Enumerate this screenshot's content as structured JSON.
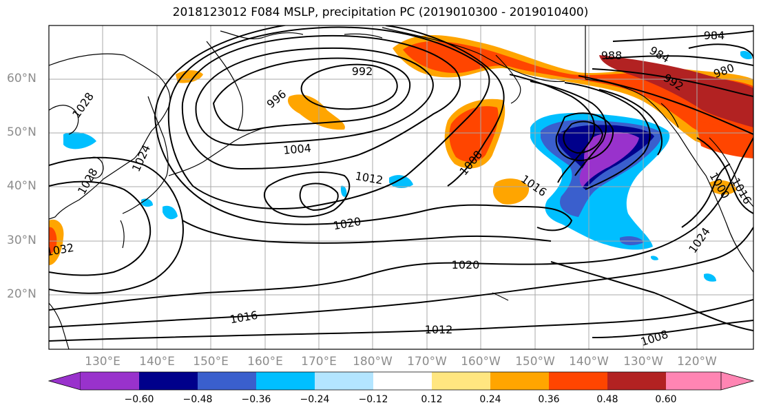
{
  "title": "2018123012 F084 MSLP, precipitation PC (2019010300 - 2019010400)",
  "lat_labels": [
    "60°N",
    "50°N",
    "40°N",
    "30°N",
    "20°N"
  ],
  "lon_labels": [
    "130°E",
    "140°E",
    "150°E",
    "160°E",
    "170°E",
    "180°W",
    "170°W",
    "160°W",
    "150°W",
    "140°W",
    "130°W",
    "120°W"
  ],
  "colorbar": {
    "ticks": [
      "−0.60",
      "−0.48",
      "−0.36",
      "−0.24",
      "−0.12",
      "0.12",
      "0.24",
      "0.36",
      "0.48",
      "0.60"
    ],
    "colors": [
      "#9932cc",
      "#00008b",
      "#3a5fcd",
      "#00bfff",
      "#b3e5ff",
      "#ffffff",
      "#ffe680",
      "#ffa500",
      "#ff4500",
      "#b22222",
      "#ff85b3"
    ]
  },
  "isobar_labels": [
    "984",
    "988",
    "984",
    "980",
    "992",
    "992",
    "996",
    "1028",
    "1004",
    "1024",
    "1008",
    "1012",
    "1016",
    "1032",
    "1020",
    "1024",
    "1020",
    "1016",
    "1012",
    "1008",
    "1000",
    "1016",
    "1028"
  ]
}
